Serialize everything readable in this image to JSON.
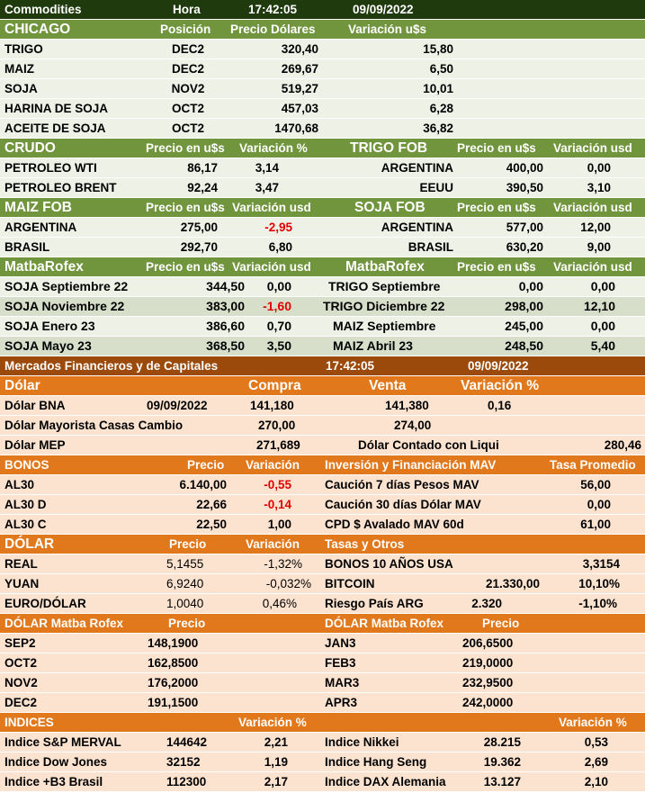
{
  "top": {
    "title": "Commodities",
    "hora_label": "Hora",
    "time": "17:42:05",
    "date": "09/09/2022"
  },
  "chicago": {
    "header": [
      "CHICAGO",
      "Posición",
      "Precio Dólares",
      "Variación u$s"
    ],
    "rows": [
      [
        "TRIGO",
        "DEC2",
        "320,40",
        "15,80"
      ],
      [
        "MAIZ",
        "DEC2",
        "269,67",
        "6,50"
      ],
      [
        "SOJA",
        "NOV2",
        "519,27",
        "10,01"
      ],
      [
        "HARINA DE SOJA",
        "OCT2",
        "457,03",
        "6,28"
      ],
      [
        "ACEITE DE SOJA",
        "OCT2",
        "1470,68",
        "36,82"
      ]
    ]
  },
  "crudo": {
    "header": [
      "CRUDO",
      "Precio en u$s",
      "Variación %",
      "TRIGO FOB",
      "Precio en u$s",
      "Variación usd"
    ],
    "rows": [
      [
        "PETROLEO WTI",
        "86,17",
        "3,14",
        "ARGENTINA",
        "400,00",
        "0,00"
      ],
      [
        "PETROLEO BRENT",
        "92,24",
        "3,47",
        "EEUU",
        "390,50",
        "3,10"
      ]
    ]
  },
  "maiz_fob": {
    "header": [
      "MAIZ FOB",
      "Precio en u$s",
      "Variación usd",
      "SOJA FOB",
      "Precio en u$s",
      "Variación usd"
    ],
    "rows": [
      [
        "ARGENTINA",
        "275,00",
        "-2,95",
        "ARGENTINA",
        "577,00",
        "12,00"
      ],
      [
        "BRASIL",
        "292,70",
        "6,80",
        "BRASIL",
        "630,20",
        "9,00"
      ]
    ]
  },
  "matba": {
    "header": [
      "MatbaRofex",
      "Precio en u$s",
      "Variación usd",
      "MatbaRofex",
      "Precio en u$s",
      "Variación usd"
    ],
    "rows": [
      [
        "SOJA Septiembre 22",
        "344,50",
        "0,00",
        "TRIGO Septiembre",
        "0,00",
        "0,00"
      ],
      [
        "SOJA Noviembre 22",
        "383,00",
        "-1,60",
        "TRIGO Diciembre 22",
        "298,00",
        "12,10"
      ],
      [
        "SOJA Enero 23",
        "386,60",
        "0,70",
        "MAIZ Septiembre",
        "245,00",
        "0,00"
      ],
      [
        "SOJA Mayo 23",
        "368,50",
        "3,50",
        "MAIZ Abril 23",
        "248,50",
        "5,40"
      ]
    ]
  },
  "mercados": {
    "title": "Mercados Financieros y de Capitales",
    "time": "17:42:05",
    "date": "09/09/2022"
  },
  "dolar": {
    "header": [
      "Dólar",
      "Compra",
      "Venta",
      "Variación %"
    ],
    "bna": [
      "Dólar BNA",
      "09/09/2022",
      "141,180",
      "141,380",
      "0,16"
    ],
    "mayorista": [
      "Dólar Mayorista Casas Cambio",
      "270,00",
      "274,00"
    ],
    "mep": [
      "Dólar MEP",
      "271,689",
      "Dólar Contado con Liqui",
      "280,46"
    ]
  },
  "bonos": {
    "header": [
      "BONOS",
      "Precio",
      "Variación",
      "Inversión y Financiación MAV",
      "Tasa Promedio"
    ],
    "rows": [
      [
        "AL30",
        "6.140,00",
        "-0,55",
        "Caución 7 días Pesos MAV",
        "56,00"
      ],
      [
        "AL30 D",
        "22,66",
        "-0,14",
        "Caución 30 días Dólar MAV",
        "0,00"
      ],
      [
        "AL30 C",
        "22,50",
        "1,00",
        "CPD $ Avalado  MAV 60d",
        "61,00"
      ]
    ]
  },
  "dolar2": {
    "header": [
      "DÓLAR",
      "Precio",
      "Variación",
      "Tasas y Otros"
    ],
    "rows": [
      [
        "REAL",
        "5,1455",
        "-1,32%",
        "BONOS 10 AÑOS USA",
        "",
        "3,3154"
      ],
      [
        "YUAN",
        "6,9240",
        "-0,032%",
        "BITCOIN",
        "21.330,00",
        "10,10%"
      ],
      [
        "EURO/DÓLAR",
        "1,0040",
        "0,46%",
        "Riesgo País ARG",
        "2.320",
        "-1,10%"
      ]
    ]
  },
  "dolar_matba": {
    "header": [
      "DÓLAR Matba Rofex",
      "Precio",
      "DÓLAR Matba Rofex",
      "Precio"
    ],
    "rows": [
      [
        "SEP2",
        "148,1900",
        "JAN3",
        "206,6500"
      ],
      [
        "OCT2",
        "162,8500",
        "FEB3",
        "219,0000"
      ],
      [
        "NOV2",
        "176,2000",
        "MAR3",
        "232,9500"
      ],
      [
        "DEC2",
        "191,1500",
        "APR3",
        "242,0000"
      ]
    ]
  },
  "indices": {
    "header": [
      "INDICES",
      "Variación %",
      "Variación %"
    ],
    "rows": [
      [
        "Indice S&P MERVAL",
        "144642",
        "2,21",
        "Indice Nikkei",
        "28.215",
        "0,53"
      ],
      [
        "Indice Dow Jones",
        "32152",
        "1,19",
        "Indice Hang Seng",
        "19.362",
        "2,69"
      ],
      [
        "Indice +B3 Brasil",
        "112300",
        "2,17",
        "Indice DAX Alemania",
        "13.127",
        "2,10"
      ]
    ]
  },
  "colors": {
    "dark_green": "#1f3a0d",
    "green": "#70953d",
    "brown": "#9b4a0b",
    "orange": "#e2781c",
    "negative": "#e00000"
  }
}
